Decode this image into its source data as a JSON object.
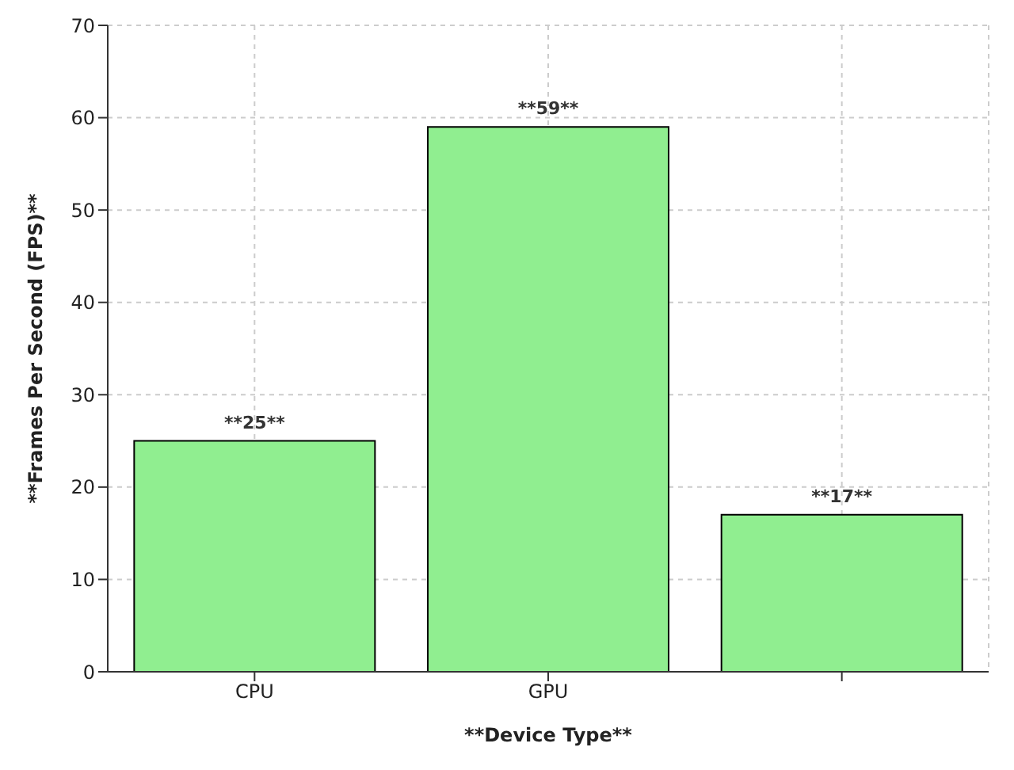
{
  "chart_data": {
    "type": "bar",
    "xlabel": "**Device Type**",
    "ylabel": "**Frames Per Second (FPS)**",
    "categories": [
      "CPU",
      "GPU",
      null
    ],
    "values": [
      25,
      59,
      17
    ],
    "color": "#90ee90",
    "value_labels": [
      "**25**",
      "**59**",
      "**17**"
    ],
    "ylim": [
      0,
      70
    ],
    "yticks": [
      0,
      10,
      20,
      30,
      40,
      50,
      60,
      70
    ],
    "grid": true
  }
}
